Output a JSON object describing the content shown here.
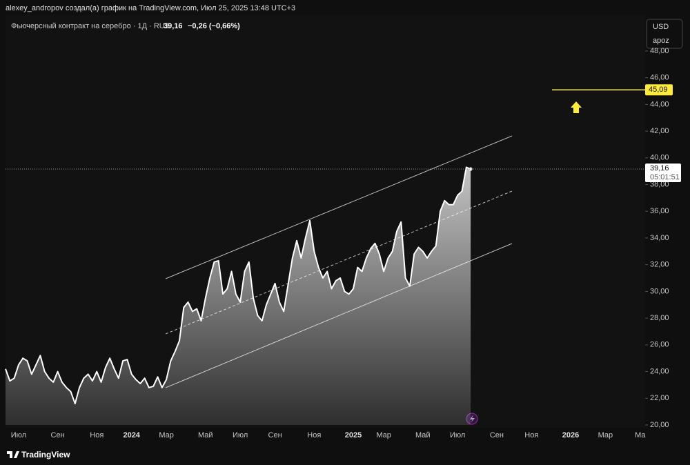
{
  "header": {
    "credit": "alexey_andropov создал(а) график на TradingView.com, Июл 25, 2025 13:48 UTC+3",
    "symbol": "Фьючерсный контракт на серебро · 1Д · RUS",
    "last": "39,16",
    "change": "−0,26 (−0,66%)"
  },
  "scale_box": [
    "USD",
    "apoz"
  ],
  "footer": "TradingView",
  "chart_data": {
    "type": "area",
    "color": "#ffffff",
    "grid": false,
    "categories": [
      null,
      null,
      null,
      "Июл",
      null,
      null,
      null,
      null,
      null,
      null,
      null,
      null,
      "Сен",
      null,
      null,
      null,
      null,
      null,
      null,
      null,
      null,
      "Ноя",
      null,
      null,
      null,
      null,
      null,
      null,
      null,
      "2024",
      null,
      null,
      null,
      null,
      null,
      null,
      null,
      "Мар",
      null,
      null,
      null,
      null,
      null,
      null,
      null,
      null,
      "Май",
      null,
      null,
      null,
      null,
      null,
      null,
      null,
      "Июл",
      null,
      null,
      null,
      null,
      null,
      null,
      null,
      "Сен",
      null,
      null,
      null,
      null,
      null,
      null,
      null,
      null,
      "Ноя",
      null,
      null,
      null,
      null,
      null,
      null,
      null,
      null,
      "2025",
      null,
      null,
      null,
      null,
      null,
      null,
      "Мар",
      null,
      null,
      null,
      null,
      null,
      null,
      null,
      null,
      "Май",
      null,
      null,
      null,
      null,
      null,
      null,
      null,
      "Июл",
      null,
      null,
      null,
      null,
      null,
      null,
      null,
      null,
      "Сен",
      null,
      null,
      null,
      null,
      null,
      null,
      null,
      "Ноя",
      null,
      null,
      null,
      null,
      null,
      null,
      null,
      null,
      "2026",
      null,
      null,
      null,
      null,
      null,
      null,
      null,
      "Мар",
      null,
      null,
      null,
      null,
      null,
      null,
      null,
      "Ма",
      null
    ],
    "values": [
      24.2,
      23.3,
      23.5,
      24.5,
      25.0,
      24.8,
      23.8,
      24.5,
      25.2,
      24.0,
      23.5,
      23.2,
      24.0,
      23.2,
      22.8,
      22.5,
      21.6,
      22.8,
      23.5,
      23.8,
      23.3,
      24.0,
      23.2,
      24.3,
      25.0,
      24.2,
      23.5,
      24.8,
      24.9,
      23.8,
      23.4,
      23.1,
      23.5,
      22.8,
      22.9,
      23.6,
      22.8,
      23.4,
      24.8,
      25.5,
      26.3,
      28.8,
      29.2,
      28.5,
      28.7,
      27.8,
      29.5,
      31.0,
      32.2,
      32.3,
      29.8,
      30.2,
      31.5,
      29.8,
      29.2,
      31.5,
      32.2,
      29.5,
      28.2,
      27.8,
      29.0,
      29.8,
      30.6,
      29.2,
      28.5,
      30.5,
      32.5,
      33.8,
      32.5,
      34.0,
      35.3,
      33.0,
      31.8,
      31.0,
      31.5,
      30.2,
      30.8,
      31.0,
      30.0,
      29.8,
      30.2,
      31.8,
      31.5,
      32.5,
      33.2,
      33.6,
      32.8,
      31.5,
      32.5,
      33.0,
      34.5,
      35.2,
      31.0,
      30.4,
      32.8,
      33.3,
      33.0,
      32.5,
      33.0,
      33.4,
      36.0,
      36.8,
      36.5,
      36.5,
      37.2,
      37.5,
      39.3,
      39.16,
      null,
      null,
      null,
      null,
      null,
      null,
      null,
      null,
      null,
      null,
      null,
      null,
      null,
      null,
      null,
      null,
      null,
      null,
      null,
      null,
      null,
      null,
      null,
      null,
      null,
      null,
      null,
      null,
      null,
      null,
      null,
      null,
      null,
      null,
      null,
      null,
      null,
      null,
      null,
      null
    ],
    "ylim": [
      20,
      48
    ],
    "yticks": [
      {
        "value": 20,
        "label": "20,00"
      },
      {
        "value": 22,
        "label": "22,00"
      },
      {
        "value": 24,
        "label": "24,00"
      },
      {
        "value": 26,
        "label": "26,00"
      },
      {
        "value": 28,
        "label": "28,00"
      },
      {
        "value": 30,
        "label": "30,00"
      },
      {
        "value": 32,
        "label": "32,00"
      },
      {
        "value": 34,
        "label": "34,00"
      },
      {
        "value": 36,
        "label": "36,00"
      },
      {
        "value": 38,
        "label": "38,00"
      },
      {
        "value": 40,
        "label": "40,00"
      },
      {
        "value": 42,
        "label": "42,00"
      },
      {
        "value": 44,
        "label": "44,00"
      },
      {
        "value": 46,
        "label": "46,00"
      },
      {
        "value": 48,
        "label": "48,00"
      }
    ],
    "price_lines": [
      {
        "value": 39.16,
        "label": "39,16",
        "sublabel": "05:01:51",
        "color": "#9a9a9a"
      },
      {
        "value": 45.09,
        "label": "45,09",
        "color": "#ffeb3b"
      }
    ]
  }
}
